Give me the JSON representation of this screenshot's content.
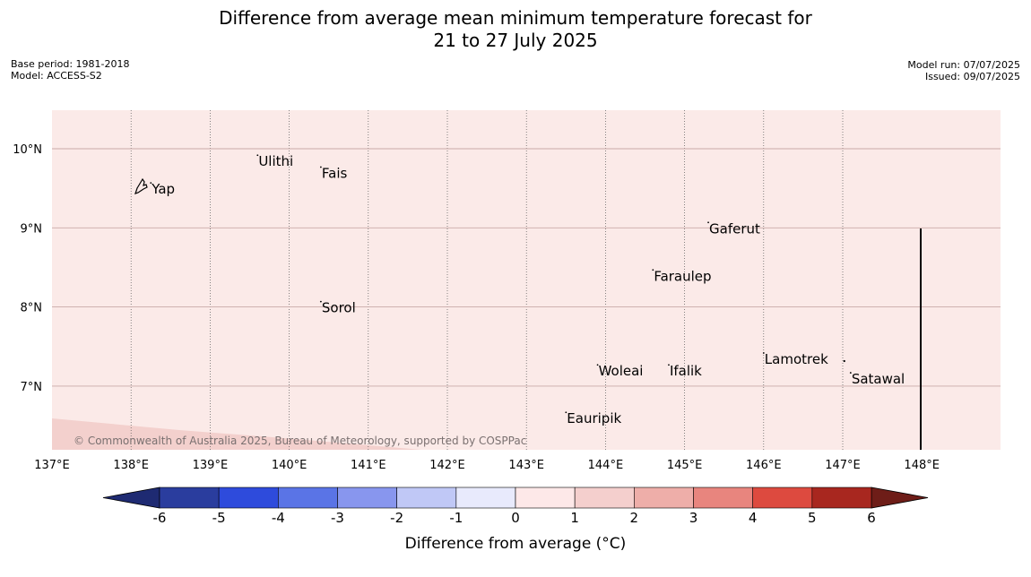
{
  "title": {
    "line1": "Difference from average mean minimum temperature forecast for",
    "line2": "21 to 27 July 2025"
  },
  "meta_left": {
    "base_period": "Base period: 1981-2018",
    "model": "Model: ACCESS-S2"
  },
  "meta_right": {
    "model_run": "Model run: 07/07/2025",
    "issued": "Issued: 09/07/2025"
  },
  "map": {
    "lon_labels": [
      "137°E",
      "138°E",
      "139°E",
      "140°E",
      "141°E",
      "142°E",
      "143°E",
      "144°E",
      "145°E",
      "146°E",
      "147°E",
      "148°E"
    ],
    "lat_labels": [
      "10°N",
      "9°N",
      "8°N",
      "7°N"
    ],
    "extent": {
      "lon": [
        137,
        149
      ],
      "lat": [
        6.2,
        10.5
      ]
    },
    "background_anomaly": "0 to 1",
    "background_color": "#fbeae8",
    "places": [
      {
        "name": "Yap",
        "lon": 138.25,
        "lat": 9.5
      },
      {
        "name": "Ulithi",
        "lon": 139.6,
        "lat": 9.85
      },
      {
        "name": "Fais",
        "lon": 140.4,
        "lat": 9.7
      },
      {
        "name": "Gaferut",
        "lon": 145.3,
        "lat": 9.0
      },
      {
        "name": "Faraulep",
        "lon": 144.6,
        "lat": 8.4
      },
      {
        "name": "Sorol",
        "lon": 140.4,
        "lat": 8.0
      },
      {
        "name": "Woleai",
        "lon": 143.9,
        "lat": 7.2
      },
      {
        "name": "Ifalik",
        "lon": 144.8,
        "lat": 7.2
      },
      {
        "name": "Lamotrek",
        "lon": 146.0,
        "lat": 7.35
      },
      {
        "name": "Satawal",
        "lon": 147.1,
        "lat": 7.1
      },
      {
        "name": "Eauripik",
        "lon": 143.5,
        "lat": 6.6
      }
    ],
    "copyright": "© Commonwealth of Australia 2025, Bureau of Meteorology, supported by COSPPac"
  },
  "colorbar": {
    "label": "Difference from average (°C)",
    "ticks": [
      "-6",
      "-5",
      "-4",
      "-3",
      "-2",
      "-1",
      "0",
      "1",
      "2",
      "3",
      "4",
      "5",
      "6"
    ],
    "colors": [
      "#2a3d9e",
      "#2e4bdc",
      "#5a74e6",
      "#8896ee",
      "#c0c8f6",
      "#e8eafc",
      "#fde8e8",
      "#f4cfcd",
      "#eeaea9",
      "#e8857e",
      "#dd4a3f",
      "#a8271f"
    ],
    "under_color": "#1e2a72",
    "over_color": "#6e1d18"
  }
}
